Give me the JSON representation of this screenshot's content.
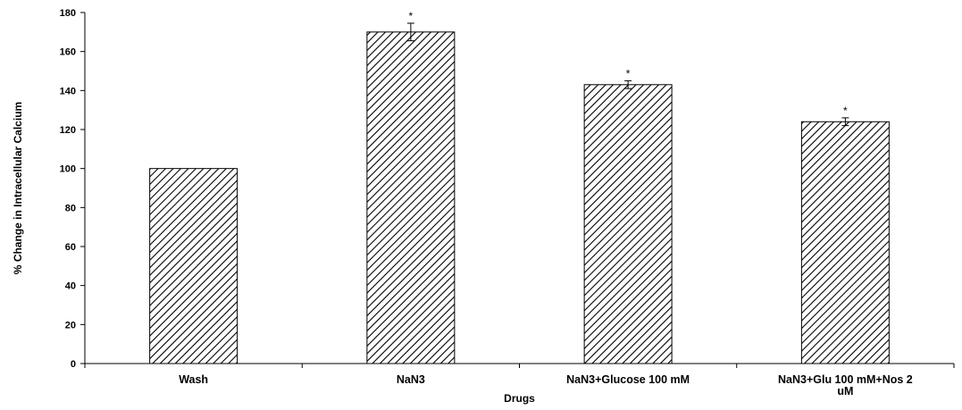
{
  "chart_data": {
    "type": "bar",
    "categories": [
      "Wash",
      "NaN3",
      "NaN3+Glucose 100 mM",
      "NaN3+Glu 100 mM+Nos 2 uM"
    ],
    "category_lines": [
      [
        "Wash"
      ],
      [
        "NaN3"
      ],
      [
        "NaN3+Glucose 100 mM"
      ],
      [
        "NaN3+Glu 100 mM+Nos 2",
        "uM"
      ]
    ],
    "values": [
      100,
      170,
      143,
      124
    ],
    "errors": [
      0,
      4.5,
      2,
      2
    ],
    "significance": [
      "",
      "*",
      "*",
      "*"
    ],
    "xlabel": "Drugs",
    "ylabel": "% Change in Intracellular Calcium",
    "ylim": [
      0,
      180
    ],
    "yticks": [
      0,
      20,
      40,
      60,
      80,
      100,
      120,
      140,
      160,
      180
    ],
    "grid": false,
    "legend": "none",
    "bar_fill": "diagonal-hatch",
    "colors": {
      "bar_stroke": "#000000",
      "hatch": "#000000",
      "background": "#ffffff"
    }
  }
}
